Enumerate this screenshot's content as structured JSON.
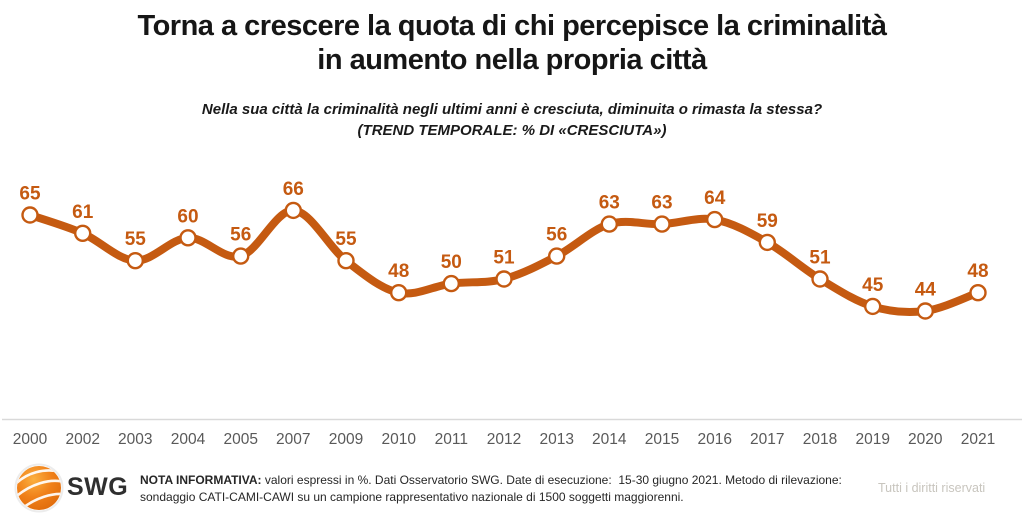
{
  "chart_data": {
    "type": "line",
    "title": "Torna a crescere la quota di chi percepisce la criminalità in aumento nella propria città",
    "title_lines": [
      "Torna a crescere la quota di chi percepisce la criminalità",
      "in aumento nella propria città"
    ],
    "subtitle_lines": [
      "Nella sua città la criminalità negli ultimi anni è cresciuta, diminuita o rimasta la stessa?",
      "(TREND TEMPORALE: % DI «CRESCIUTA»)"
    ],
    "categories": [
      "2000",
      "2002",
      "2003",
      "2004",
      "2005",
      "2007",
      "2009",
      "2010",
      "2011",
      "2012",
      "2013",
      "2014",
      "2015",
      "2016",
      "2017",
      "2018",
      "2019",
      "2020",
      "2021"
    ],
    "values": [
      65,
      61,
      55,
      60,
      56,
      66,
      55,
      48,
      50,
      51,
      56,
      63,
      63,
      64,
      59,
      51,
      45,
      44,
      48
    ],
    "ylim": [
      40,
      70
    ],
    "grid": false,
    "legend": "none",
    "data_labels": true,
    "series_color": "#C55A11",
    "marker_style": "white-circle-orange-border"
  },
  "colors": {
    "accent": "#C55A11",
    "axis_label": "#595959",
    "axis_line": "#D9D9D9",
    "title_text": "#161616",
    "rights_text": "#C8C5BE",
    "logo_orange_light": "#F9A13B",
    "logo_orange_dark": "#E06C0C"
  },
  "footer": {
    "logo_text": "SWG",
    "nota_label": "NOTA INFORMATIVA:",
    "nota_text": " valori espressi in %. Dati Osservatorio SWG. Date di esecuzione:  15-30 giugno 2021. Metodo di rilevazione: sondaggio CATI-CAMI-CAWI su un campione rappresentativo nazionale di 1500 soggetti maggiorenni.",
    "rights": "Tutti i diritti riservati"
  }
}
